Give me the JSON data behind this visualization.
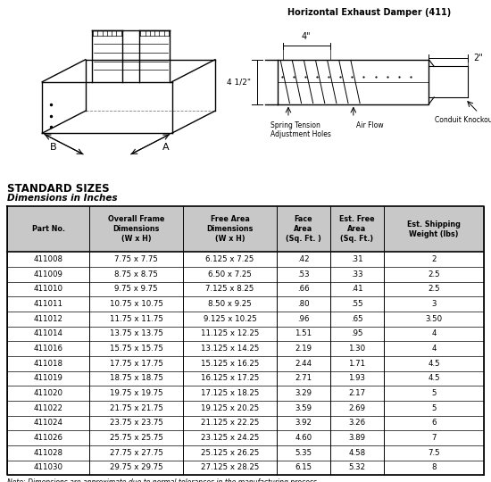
{
  "diagram_title": "Horizontal Exhaust Damper (411)",
  "section_title": "STANDARD SIZES",
  "section_subtitle": "Dimensions in Inches",
  "note": "Note: Dimensions are approximate due to normal tolerances in the manufacturing process.",
  "col_headers": [
    "Part No.",
    "Overall Frame\nDimensions\n(W x H)",
    "Free Area\nDimensions\n(W x H)",
    "Face\nArea\n(Sq. Ft. )",
    "Est. Free\nArea\n(Sq. Ft.)",
    "Est. Shipping\nWeight (lbs)"
  ],
  "rows": [
    [
      "411008",
      "7.75 x 7.75",
      "6.125 x 7.25",
      ".42",
      ".31",
      "2"
    ],
    [
      "411009",
      "8.75 x 8.75",
      "6.50 x 7.25",
      ".53",
      ".33",
      "2.5"
    ],
    [
      "411010",
      "9.75 x 9.75",
      "7.125 x 8.25",
      ".66",
      ".41",
      "2.5"
    ],
    [
      "411011",
      "10.75 x 10.75",
      "8.50 x 9.25",
      ".80",
      ".55",
      "3"
    ],
    [
      "411012",
      "11.75 x 11.75",
      "9.125 x 10.25",
      ".96",
      ".65",
      "3.50"
    ],
    [
      "411014",
      "13.75 x 13.75",
      "11.125 x 12.25",
      "1.51",
      ".95",
      "4"
    ],
    [
      "411016",
      "15.75 x 15.75",
      "13.125 x 14.25",
      "2.19",
      "1.30",
      "4"
    ],
    [
      "411018",
      "17.75 x 17.75",
      "15.125 x 16.25",
      "2.44",
      "1.71",
      "4.5"
    ],
    [
      "411019",
      "18.75 x 18.75",
      "16.125 x 17.25",
      "2.71",
      "1.93",
      "4.5"
    ],
    [
      "411020",
      "19.75 x 19.75",
      "17.125 x 18.25",
      "3.29",
      "2.17",
      "5"
    ],
    [
      "411022",
      "21.75 x 21.75",
      "19.125 x 20.25",
      "3.59",
      "2.69",
      "5"
    ],
    [
      "411024",
      "23.75 x 23.75",
      "21.125 x 22.25",
      "3.92",
      "3.26",
      "6"
    ],
    [
      "411026",
      "25.75 x 25.75",
      "23.125 x 24.25",
      "4.60",
      "3.89",
      "7"
    ],
    [
      "411028",
      "27.75 x 27.75",
      "25.125 x 26.25",
      "5.35",
      "4.58",
      "7.5"
    ],
    [
      "411030",
      "29.75 x 29.75",
      "27.125 x 28.25",
      "6.15",
      "5.32",
      "8"
    ]
  ],
  "bg_color": "#ffffff",
  "header_bg": "#c8c8c8",
  "row_bg": "#ffffff",
  "border_color": "#000000"
}
